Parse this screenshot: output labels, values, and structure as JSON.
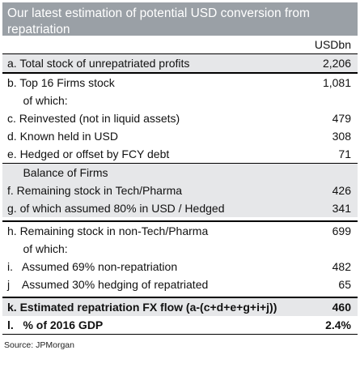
{
  "title": "Our latest estimation of potential USD conversion from repatriation",
  "unit_label": "USDbn",
  "rows": {
    "a": {
      "label": "a.  Total stock of unrepatriated profits",
      "value": "2,206"
    },
    "b": {
      "label": "b.  Top 16 Firms stock",
      "value": "1,081"
    },
    "b_sub": {
      "label": "     of which:"
    },
    "c": {
      "label": "c.  Reinvested (not in liquid assets)",
      "value": "479"
    },
    "d": {
      "label": "d.  Known held in USD",
      "value": "308"
    },
    "e": {
      "label": "e.  Hedged or offset by FCY debt",
      "value": "71"
    },
    "balance": {
      "label": "     Balance of Firms"
    },
    "f": {
      "label": "f.  Remaining stock in Tech/Pharma",
      "value": "426"
    },
    "g": {
      "label": "g.  of which assumed 80% in USD / Hedged",
      "value": "341"
    },
    "h": {
      "label": "h.  Remaining stock in non-Tech/Pharma",
      "value": "699"
    },
    "h_sub": {
      "label": "     of which:"
    },
    "i": {
      "label": "i.   Assumed 69% non-repatriation",
      "value": "482"
    },
    "j": {
      "label": "j    Assumed 30% hedging of repatriated",
      "value": "65"
    },
    "k": {
      "label": "k.  Estimated repatriation FX flow (a-(c+d+e+g+i+j))",
      "value": "460"
    },
    "l": {
      "label": "l.   % of 2016 GDP",
      "value": "2.4%"
    }
  },
  "source": "Source: JPMorgan",
  "colors": {
    "header_bg": "#9aa0a6",
    "row_shade": "#e6e7e9"
  }
}
